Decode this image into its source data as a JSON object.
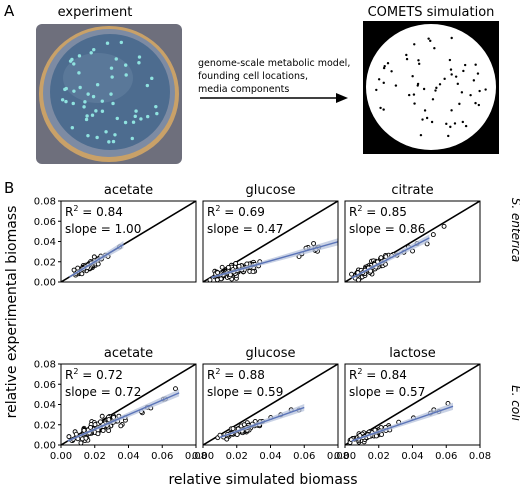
{
  "panel_a": {
    "label": "A",
    "left_title": "experiment",
    "right_title": "COMETS simulation",
    "arrow_text": [
      "genome-scale metabolic model,",
      "founding cell locations,",
      "media components"
    ]
  },
  "panel_b": {
    "label": "B",
    "xlabel": "relative simulated biomass",
    "ylabel": "relative experimental biomass",
    "row_labels": [
      "S. enterica",
      "E. coli"
    ],
    "x_ticks": [
      "0.00",
      "0.02",
      "0.04",
      "0.06",
      "0.08"
    ],
    "y_ticks": [
      "0.00",
      "0.02",
      "0.04",
      "0.06",
      "0.08"
    ]
  },
  "chart_data": [
    {
      "type": "scatter",
      "title": "acetate",
      "organism": "S. enterica",
      "r2": "0.84",
      "slope": "1.00",
      "slope_value": 1.0,
      "xlim": [
        0,
        0.08
      ],
      "ylim": [
        0,
        0.08
      ],
      "fit_x": [
        0.005,
        0.037
      ],
      "n_points": 90,
      "x_center": 0.016,
      "x_spread": 0.008,
      "x_range": [
        0.004,
        0.037
      ],
      "noise": 0.003
    },
    {
      "type": "scatter",
      "title": "glucose",
      "organism": "S. enterica",
      "r2": "0.69",
      "slope": "0.47",
      "slope_value": 0.47,
      "xlim": [
        0,
        0.08
      ],
      "ylim": [
        0,
        0.08
      ],
      "fit_x": [
        0.005,
        0.08
      ],
      "n_points": 110,
      "x_center": 0.018,
      "x_spread": 0.012,
      "x_range": [
        0.004,
        0.075
      ],
      "noise": 0.005
    },
    {
      "type": "scatter",
      "title": "citrate",
      "organism": "S. enterica",
      "r2": "0.85",
      "slope": "0.86",
      "slope_value": 0.86,
      "xlim": [
        0,
        0.08
      ],
      "ylim": [
        0,
        0.08
      ],
      "fit_x": [
        0.004,
        0.05
      ],
      "n_points": 110,
      "x_center": 0.016,
      "x_spread": 0.01,
      "x_range": [
        0.003,
        0.06
      ],
      "noise": 0.004
    },
    {
      "type": "scatter",
      "title": "acetate",
      "organism": "E. coli",
      "r2": "0.72",
      "slope": "0.72",
      "slope_value": 0.72,
      "xlim": [
        0,
        0.08
      ],
      "ylim": [
        0,
        0.08
      ],
      "fit_x": [
        0.004,
        0.07
      ],
      "n_points": 110,
      "x_center": 0.022,
      "x_spread": 0.014,
      "x_range": [
        0.004,
        0.07
      ],
      "noise": 0.006
    },
    {
      "type": "scatter",
      "title": "glucose",
      "organism": "E. coli",
      "r2": "0.88",
      "slope": "0.59",
      "slope_value": 0.59,
      "xlim": [
        0,
        0.08
      ],
      "ylim": [
        0,
        0.08
      ],
      "fit_x": [
        0.01,
        0.06
      ],
      "n_points": 80,
      "x_center": 0.024,
      "x_spread": 0.01,
      "x_range": [
        0.008,
        0.06
      ],
      "noise": 0.003
    },
    {
      "type": "scatter",
      "title": "lactose",
      "organism": "E. coli",
      "r2": "0.84",
      "slope": "0.57",
      "slope_value": 0.57,
      "xlim": [
        0,
        0.08
      ],
      "ylim": [
        0,
        0.08
      ],
      "fit_x": [
        0.004,
        0.064
      ],
      "n_points": 90,
      "x_center": 0.014,
      "x_spread": 0.01,
      "x_range": [
        0.003,
        0.062
      ],
      "noise": 0.003
    }
  ]
}
